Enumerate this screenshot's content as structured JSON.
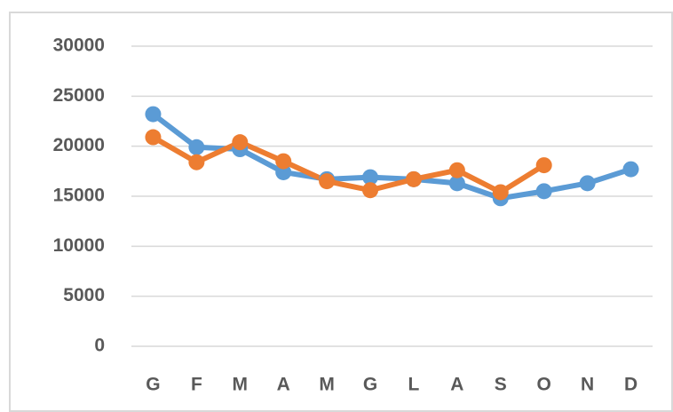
{
  "chart_data": {
    "type": "line",
    "categories": [
      "G",
      "F",
      "M",
      "A",
      "M",
      "G",
      "L",
      "A",
      "S",
      "O",
      "N",
      "D"
    ],
    "series": [
      {
        "color": "#5b9bd5",
        "values": [
          23200,
          19900,
          19700,
          17400,
          16700,
          16900,
          16700,
          16300,
          14800,
          15500,
          16300,
          17700
        ]
      },
      {
        "color": "#ed7d31",
        "values": [
          20900,
          18400,
          20400,
          18500,
          16500,
          15600,
          16700,
          17600,
          15400,
          18100,
          null,
          null
        ]
      }
    ],
    "ylim": [
      0,
      30000
    ],
    "yticks": [
      0,
      5000,
      10000,
      15000,
      20000,
      25000,
      30000
    ],
    "grid": true
  }
}
